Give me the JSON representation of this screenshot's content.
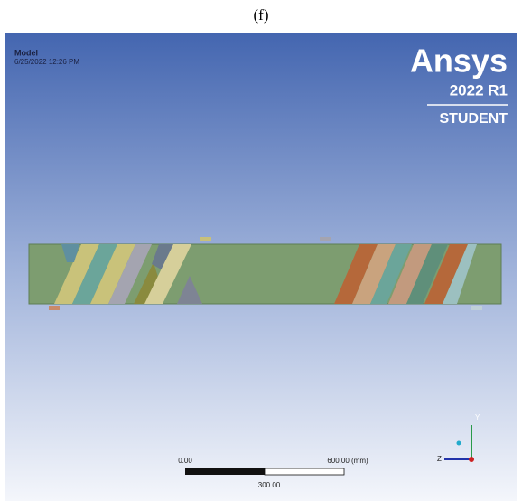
{
  "caption": "(f)",
  "model": {
    "title": "Model",
    "timestamp": "6/25/2022 12:26 PM"
  },
  "brand": {
    "name": "Ansys",
    "version": "2022 R1",
    "edition": "STUDENT"
  },
  "scale_bar": {
    "start": "0.00",
    "end": "600.00 (mm)",
    "mid": "300.00"
  },
  "triad": {
    "y": "Y",
    "z": "Z"
  }
}
